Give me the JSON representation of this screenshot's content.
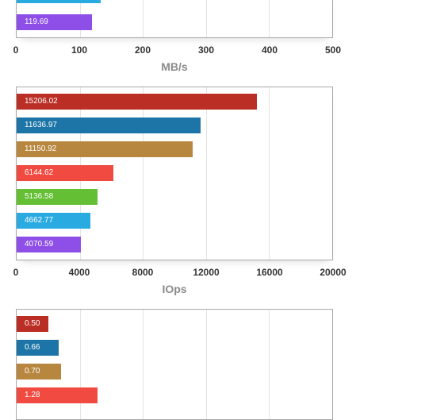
{
  "chart_data": [
    {
      "type": "bar",
      "orientation": "horizontal",
      "xlabel": "MB/s",
      "xlim": [
        0,
        500
      ],
      "ticks": [
        "0",
        "100",
        "200",
        "300",
        "400",
        "500"
      ],
      "grid": true,
      "values": [
        null,
        119.69
      ],
      "labels": [
        "",
        "119.69"
      ],
      "colors": [
        "#29abe2",
        "#8e4ee8"
      ],
      "note_partial": "first bar cut off at top edge; value 133 estimated from bar length"
    },
    {
      "type": "bar",
      "orientation": "horizontal",
      "xlabel": "IOps",
      "xlim": [
        0,
        20000
      ],
      "ticks": [
        "0",
        "4000",
        "8000",
        "12000",
        "16000",
        "20000"
      ],
      "grid": true,
      "values": [
        15206.02,
        11636.97,
        11150.92,
        6144.62,
        5136.58,
        4662.77,
        4070.59
      ],
      "labels": [
        "15206.02",
        "11636.97",
        "11150.92",
        "6144.62",
        "5136.58",
        "4662.77",
        "4070.59"
      ],
      "colors": [
        "#bb2e25",
        "#1c75a6",
        "#b8873f",
        "#f04a41",
        "#64bf35",
        "#29abe2",
        "#8e4ee8"
      ]
    },
    {
      "type": "bar",
      "orientation": "horizontal",
      "xlim": [
        0,
        5
      ],
      "grid": true,
      "values": [
        0.5,
        0.66,
        0.7,
        1.28
      ],
      "labels": [
        "0.50",
        "0.66",
        "0.70",
        "1.28"
      ],
      "colors": [
        "#bb2e25",
        "#1c75a6",
        "#b8873f",
        "#f04a41"
      ]
    }
  ]
}
